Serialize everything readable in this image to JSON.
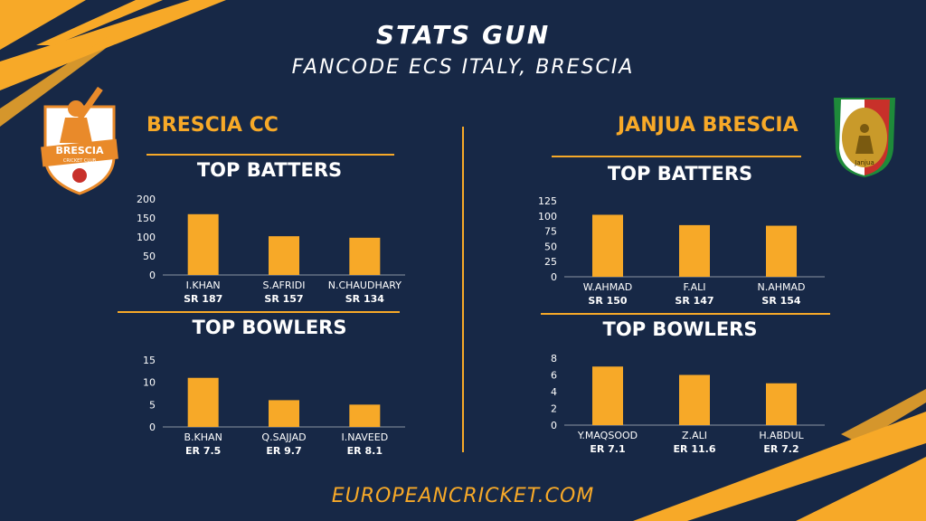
{
  "header": {
    "title": "STATS GUN",
    "subtitle": "FANCODE ECS ITALY, BRESCIA"
  },
  "footer": {
    "site": "EUROPEANCRICKET.COM"
  },
  "colors": {
    "background": "#172846",
    "accent": "#f7a928",
    "text": "#ffffff"
  },
  "teams": [
    {
      "name": "BRESCIA CC",
      "logo": {
        "icon": "brescia-cricket-club-logo",
        "line1": "BRESCIA",
        "line2": "CRICKET CLUB"
      },
      "batters_title": "TOP BATTERS",
      "bowlers_title": "TOP BOWLERS"
    },
    {
      "name": "JANJUA BRESCIA",
      "logo": {
        "icon": "janjua-brescia-logo",
        "text": "Janjua"
      },
      "batters_title": "TOP BATTERS",
      "bowlers_title": "TOP BOWLERS"
    }
  ],
  "chart_data": [
    {
      "type": "bar",
      "title": "TOP BATTERS",
      "categories": [
        "I.KHAN",
        "S.AFRIDI",
        "N.CHAUDHARY"
      ],
      "values": [
        160,
        102,
        98
      ],
      "rates": [
        "SR 187",
        "SR 157",
        "SR 134"
      ],
      "yticks": [
        0,
        50,
        100,
        150,
        200
      ],
      "ylim": [
        0,
        200
      ],
      "grid": false
    },
    {
      "type": "bar",
      "title": "TOP BOWLERS",
      "categories": [
        "B.KHAN",
        "Q.SAJJAD",
        "I.NAVEED"
      ],
      "values": [
        11,
        6,
        5
      ],
      "rates": [
        "ER 7.5",
        "ER 9.7",
        "ER 8.1"
      ],
      "yticks": [
        0,
        5,
        10,
        15
      ],
      "ylim": [
        0,
        15
      ],
      "grid": false
    },
    {
      "type": "bar",
      "title": "TOP BATTERS",
      "categories": [
        "W.AHMAD",
        "F.ALI",
        "N.AHMAD"
      ],
      "values": [
        102,
        85,
        84
      ],
      "rates": [
        "SR 150",
        "SR 147",
        "SR 154"
      ],
      "yticks": [
        0,
        25,
        50,
        75,
        100,
        125
      ],
      "ylim": [
        0,
        125
      ],
      "grid": false
    },
    {
      "type": "bar",
      "title": "TOP BOWLERS",
      "categories": [
        "Y.MAQSOOD",
        "Z.ALI",
        "H.ABDUL"
      ],
      "values": [
        7,
        6,
        5
      ],
      "rates": [
        "ER 7.1",
        "ER 11.6",
        "ER 7.2"
      ],
      "yticks": [
        0,
        2,
        4,
        6,
        8
      ],
      "ylim": [
        0,
        8
      ],
      "grid": false
    }
  ]
}
